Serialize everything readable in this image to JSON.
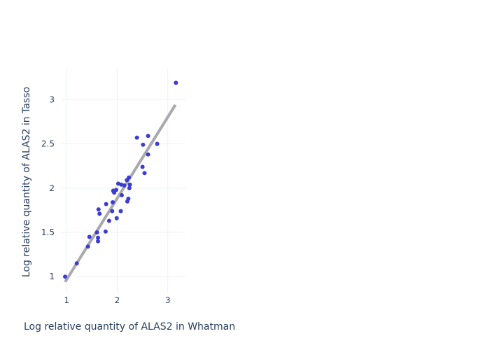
{
  "chart_data": {
    "type": "scatter",
    "title": "",
    "xlabel": "Log relative quantity of ALAS2 in Whatman",
    "ylabel": "Log relative quantity of ALAS2 in Tasso",
    "xlim": [
      0.9,
      3.35
    ],
    "ylim": [
      0.82,
      3.35
    ],
    "xticks": [
      1,
      2,
      3
    ],
    "yticks": [
      1,
      1.5,
      2,
      2.5,
      3
    ],
    "xtick_labels": [
      "1",
      "2",
      "3"
    ],
    "ytick_labels": [
      "1",
      "1.5",
      "2",
      "2.5",
      "3"
    ],
    "grid": true,
    "legend": false,
    "colors": {
      "points": "#3b3bd6",
      "fit_line": "#a9a9ad",
      "text": "#2a3f5f",
      "grid": "#eef0f4"
    },
    "series": [
      {
        "mode": "markers",
        "points": [
          {
            "x": 0.97,
            "y": 1.0
          },
          {
            "x": 1.2,
            "y": 1.15
          },
          {
            "x": 1.42,
            "y": 1.34
          },
          {
            "x": 1.45,
            "y": 1.45
          },
          {
            "x": 1.6,
            "y": 1.5
          },
          {
            "x": 1.62,
            "y": 1.44
          },
          {
            "x": 1.62,
            "y": 1.4
          },
          {
            "x": 1.63,
            "y": 1.76
          },
          {
            "x": 1.65,
            "y": 1.71
          },
          {
            "x": 1.77,
            "y": 1.51
          },
          {
            "x": 1.78,
            "y": 1.82
          },
          {
            "x": 1.84,
            "y": 1.63
          },
          {
            "x": 1.9,
            "y": 1.74
          },
          {
            "x": 1.91,
            "y": 1.84
          },
          {
            "x": 1.92,
            "y": 1.97
          },
          {
            "x": 1.94,
            "y": 1.95
          },
          {
            "x": 1.98,
            "y": 1.98
          },
          {
            "x": 1.99,
            "y": 1.66
          },
          {
            "x": 2.02,
            "y": 2.05
          },
          {
            "x": 2.07,
            "y": 1.74
          },
          {
            "x": 2.08,
            "y": 2.04
          },
          {
            "x": 2.09,
            "y": 1.92
          },
          {
            "x": 2.14,
            "y": 2.03
          },
          {
            "x": 2.19,
            "y": 2.09
          },
          {
            "x": 2.2,
            "y": 1.85
          },
          {
            "x": 2.22,
            "y": 1.88
          },
          {
            "x": 2.23,
            "y": 2.12
          },
          {
            "x": 2.24,
            "y": 2.0
          },
          {
            "x": 2.25,
            "y": 2.04
          },
          {
            "x": 2.39,
            "y": 2.57
          },
          {
            "x": 2.5,
            "y": 2.24
          },
          {
            "x": 2.51,
            "y": 2.49
          },
          {
            "x": 2.54,
            "y": 2.17
          },
          {
            "x": 2.61,
            "y": 2.38
          },
          {
            "x": 2.61,
            "y": 2.59
          },
          {
            "x": 2.79,
            "y": 2.5
          },
          {
            "x": 3.16,
            "y": 3.19
          }
        ]
      },
      {
        "mode": "lines",
        "points": [
          {
            "x": 0.97,
            "y": 0.94
          },
          {
            "x": 3.15,
            "y": 2.94
          }
        ]
      }
    ]
  }
}
